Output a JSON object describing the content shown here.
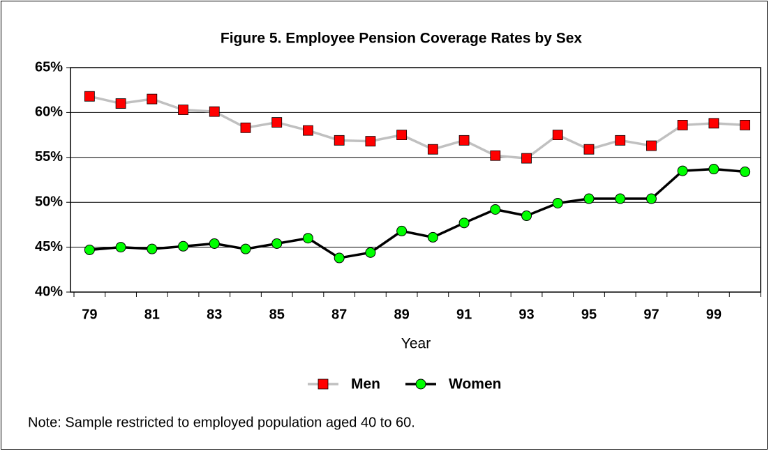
{
  "chart_data": {
    "type": "line",
    "title": "Figure 5.  Employee Pension Coverage Rates by Sex",
    "x_label": "Year",
    "note": "Note: Sample restricted to employed population aged 40 to 60.",
    "categories": [
      "79",
      null,
      "81",
      null,
      "83",
      null,
      "85",
      null,
      "87",
      null,
      "89",
      null,
      "91",
      null,
      "93",
      null,
      "95",
      null,
      "97",
      null,
      "99",
      null
    ],
    "series": [
      {
        "name": "Men",
        "color": "#c0c0c0",
        "marker_color": "#ff0000",
        "marker": "square",
        "values": [
          61.8,
          61.0,
          61.5,
          60.3,
          60.1,
          58.3,
          58.9,
          58.0,
          56.9,
          56.8,
          57.5,
          55.9,
          56.9,
          55.2,
          54.9,
          57.5,
          55.9,
          56.9,
          56.3,
          58.6,
          58.8,
          58.6
        ]
      },
      {
        "name": "Women",
        "color": "#000000",
        "marker_color": "#00ff00",
        "marker": "circle",
        "values": [
          44.7,
          45.0,
          44.8,
          45.1,
          45.4,
          44.8,
          45.4,
          46.0,
          43.8,
          44.4,
          46.8,
          46.1,
          47.7,
          49.2,
          48.5,
          49.9,
          50.4,
          50.4,
          50.4,
          53.5,
          53.7,
          53.4
        ]
      }
    ],
    "ylim": [
      40,
      65
    ],
    "yticks": [
      {
        "value": 40,
        "label": "40%"
      },
      {
        "value": 45,
        "label": "45%"
      },
      {
        "value": 50,
        "label": "50%"
      },
      {
        "value": 55,
        "label": "55%"
      },
      {
        "value": 60,
        "label": "60%"
      },
      {
        "value": 65,
        "label": "65%"
      }
    ],
    "grid": true,
    "legend": "bottom"
  }
}
